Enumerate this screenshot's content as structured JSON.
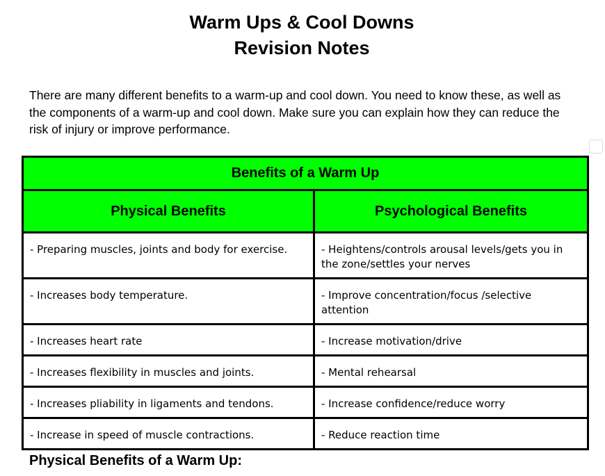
{
  "header": {
    "title": [
      "Warm Ups & Cool Downs",
      "Revision Notes"
    ]
  },
  "intro": "There are many different benefits to a warm-up and cool down. You need to know these, as well as the components of a warm-up and cool down. Make sure you can explain how they can reduce the risk of injury or improve performance.",
  "table": {
    "title": "Benefits of a Warm Up",
    "columns": [
      "Physical Benefits",
      "Psychological Benefits"
    ],
    "rows": [
      [
        "- Preparing muscles, joints and body for exercise.",
        "- Heightens/controls arousal levels/gets you in the zone/settles your nerves"
      ],
      [
        "- Increases body temperature.",
        "- Improve concentration/focus /selective attention"
      ],
      [
        "- Increases heart rate",
        "- Increase motivation/drive"
      ],
      [
        "- Increases flexibility in muscles and joints.",
        "- Mental rehearsal"
      ],
      [
        "- Increases pliability in ligaments and tendons.",
        "- Increase confidence/reduce worry"
      ],
      [
        "- Increase in speed of muscle contractions.",
        "- Reduce reaction time"
      ]
    ]
  },
  "section_heading": "Physical Benefits of a Warm Up:"
}
